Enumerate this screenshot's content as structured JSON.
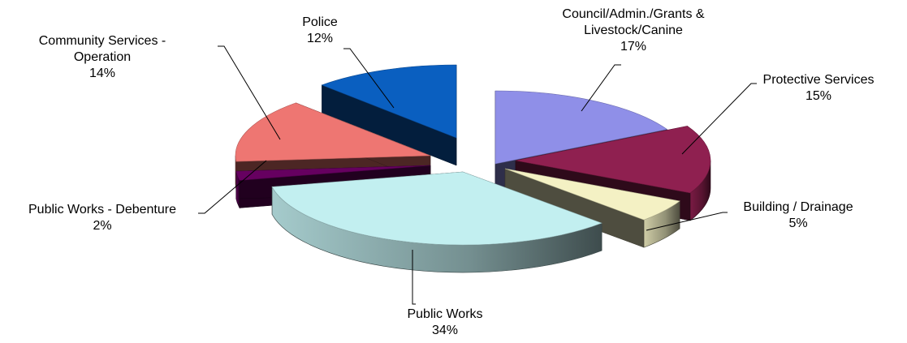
{
  "chart_data": {
    "type": "pie",
    "variant": "3d-exploded",
    "slices": [
      {
        "label": "Council/Admin./Grants & Livestock/Canine",
        "label_lines": [
          "Council/Admin./Grants &",
          "Livestock/Canine"
        ],
        "value": 17,
        "pct_label": "17%",
        "color": "#8f8fe8"
      },
      {
        "label": "Protective Services",
        "label_lines": [
          "Protective Services"
        ],
        "value": 15,
        "pct_label": "15%",
        "color": "#8f2050"
      },
      {
        "label": "Building / Drainage",
        "label_lines": [
          "Building / Drainage"
        ],
        "value": 5,
        "pct_label": "5%",
        "color": "#f4f1c4"
      },
      {
        "label": "Public Works",
        "label_lines": [
          "Public Works"
        ],
        "value": 34,
        "pct_label": "34%",
        "color": "#c2eff0"
      },
      {
        "label": "Public Works - Debenture",
        "label_lines": [
          "Public Works - Debenture"
        ],
        "value": 2,
        "pct_label": "2%",
        "color": "#660060"
      },
      {
        "label": "Community Services - Operation",
        "label_lines": [
          "Community Services -",
          "Operation"
        ],
        "value": 14,
        "pct_label": "14%",
        "color": "#ee7672"
      },
      {
        "label": "Police",
        "label_lines": [
          "Police"
        ],
        "value": 12,
        "pct_label": "12%",
        "color": "#0a5fc0"
      }
    ],
    "legend": "none"
  }
}
